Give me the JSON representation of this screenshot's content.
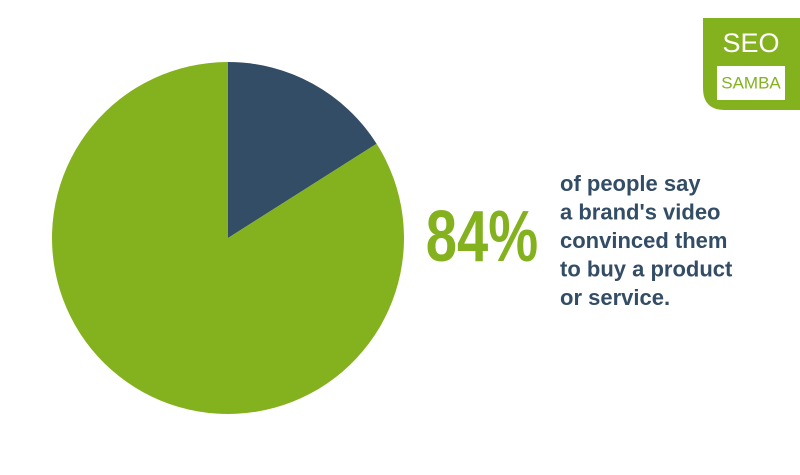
{
  "chart_data": {
    "type": "pie",
    "values": [
      16,
      84
    ],
    "value_labels": [
      null,
      "84%"
    ],
    "colors": [
      "#334d66",
      "#84b21f"
    ],
    "start_angle": 0,
    "direction": "clockwise",
    "text_lines": [
      "of people say",
      "a brand's video",
      "convinced them",
      "to buy a product",
      "or service."
    ]
  },
  "logo": {
    "top": "SEO",
    "bottom": "SAMBA"
  }
}
